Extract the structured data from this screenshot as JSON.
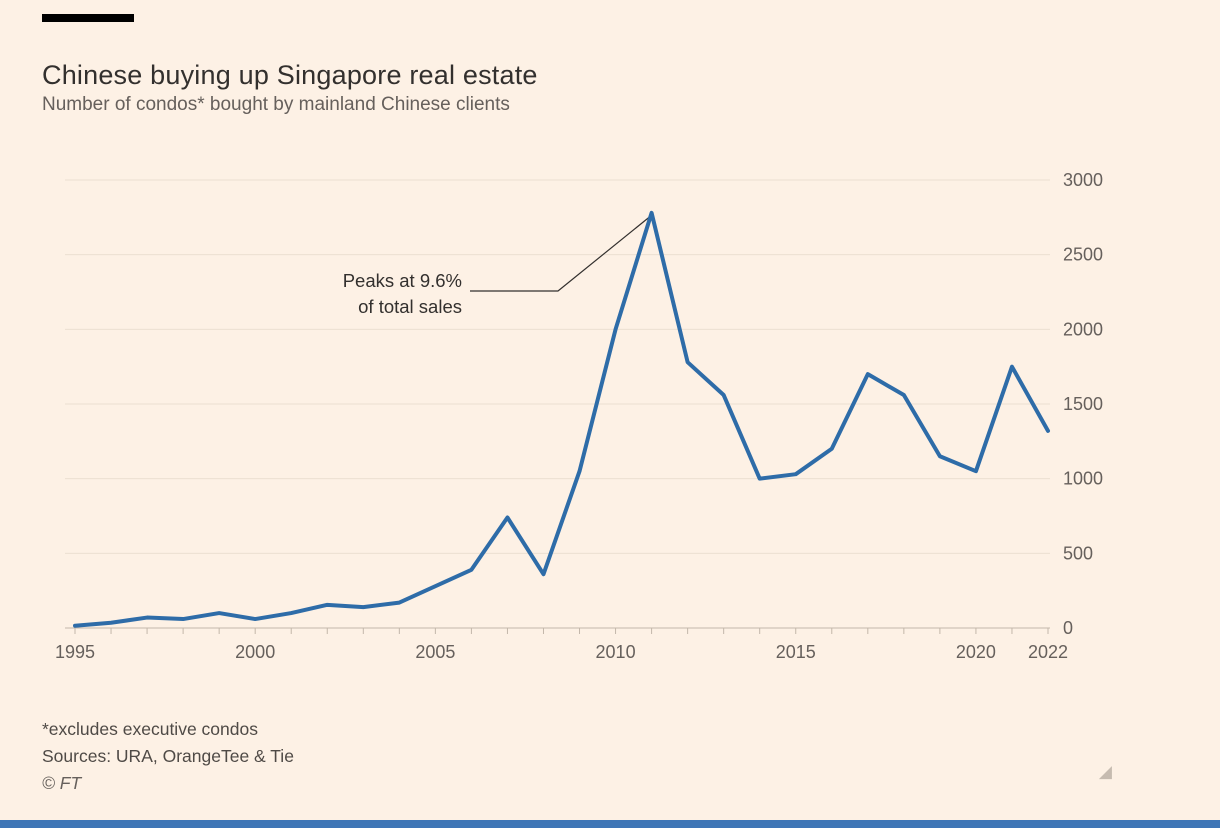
{
  "header": {
    "title": "Chinese buying up Singapore real estate",
    "subtitle": "Number of condos* bought by mainland Chinese clients"
  },
  "annotation": {
    "line1": "Peaks at 9.6%",
    "line2": "of total sales",
    "target_year": 2011,
    "target_value": 2780
  },
  "footnotes": {
    "note": "*excludes executive condos",
    "sources": "Sources: URA, OrangeTee & Tie",
    "copyright": "© FT"
  },
  "icons": {
    "resize_handle": "◢"
  },
  "colors": {
    "background": "#fdf1e5",
    "line": "#2e6ca8",
    "grid": "#ece0d1",
    "axis_line": "#c3b7aa",
    "axis_text": "#66605c",
    "title_text": "#33302e",
    "annotation_line": "#33302e",
    "bottom_bar": "#3f76b6"
  },
  "chart_data": {
    "type": "line",
    "title": "Chinese buying up Singapore real estate",
    "subtitle": "Number of condos* bought by mainland Chinese clients",
    "x": [
      1995,
      1996,
      1997,
      1998,
      1999,
      2000,
      2001,
      2002,
      2003,
      2004,
      2005,
      2006,
      2007,
      2008,
      2009,
      2010,
      2011,
      2012,
      2013,
      2014,
      2015,
      2016,
      2017,
      2018,
      2019,
      2020,
      2021,
      2022
    ],
    "series": [
      {
        "name": "Condos bought by mainland Chinese clients",
        "values": [
          15,
          35,
          70,
          60,
          100,
          60,
          100,
          155,
          140,
          170,
          280,
          390,
          740,
          360,
          1050,
          2000,
          2780,
          1780,
          1560,
          1000,
          1030,
          1200,
          1700,
          1560,
          1150,
          1050,
          1750,
          1320
        ]
      }
    ],
    "xlabel": "",
    "ylabel": "Number of condos",
    "ylim": [
      0,
      3000
    ],
    "ytick_step": 500,
    "xticks": [
      1995,
      2000,
      2005,
      2010,
      2015,
      2020,
      2022
    ],
    "grid": "horizontal",
    "y_axis_side": "right",
    "legend": "none"
  }
}
